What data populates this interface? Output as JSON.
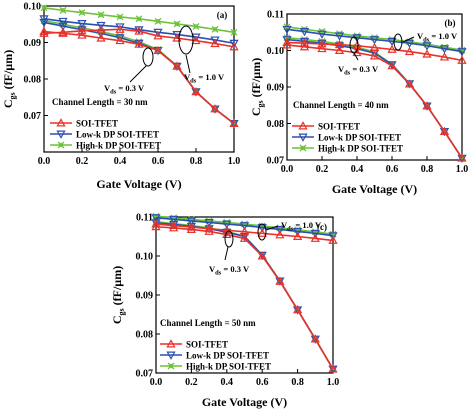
{
  "chart_data": [
    {
      "type": "line",
      "panel_label": "(a)",
      "xlabel": "Gate Voltage (V)",
      "ylabel": "C",
      "ylabel_sub": "gs",
      "ylabel_tail": " (fF/µm)",
      "xlim": [
        0.0,
        1.0
      ],
      "ylim": [
        0.06,
        0.1
      ],
      "xticks": [
        "0.0",
        "0.2",
        "0.4",
        "0.6",
        "0.8",
        "1.0"
      ],
      "yticks": [
        "0.07",
        "0.08",
        "0.09",
        "0.10"
      ],
      "channel_length": "Channel Length = 30 nm",
      "vds_high": {
        "main": "V",
        "sub": "ds",
        "tail": " = 1.0 V"
      },
      "vds_low": {
        "main": "V",
        "sub": "ds",
        "tail": " = 0.3 V"
      },
      "x": [
        0.0,
        0.1,
        0.2,
        0.3,
        0.4,
        0.5,
        0.6,
        0.7,
        0.8,
        0.9,
        1.0
      ],
      "series": [
        {
          "name": "SOI-TFET",
          "color": "#e8322a",
          "marker": "triangle-up",
          "curves": [
            [
              0.093,
              0.0925,
              0.092,
              0.0912,
              0.0905,
              0.0895,
              0.0878,
              0.0835,
              0.0765,
              0.0718,
              0.0678
            ],
            [
              0.0925,
              0.0928,
              0.0932,
              0.0934,
              0.0936,
              0.0931,
              0.0918,
              0.0912,
              0.0905,
              0.0897,
              0.0888
            ]
          ]
        },
        {
          "name": "Low-k DP SOI-TFET",
          "color": "#2b4fb0",
          "marker": "triangle-down",
          "curves": [
            [
              0.0955,
              0.0945,
              0.0935,
              0.0925,
              0.0913,
              0.0898,
              0.0878,
              0.0835,
              0.0765,
              0.0718,
              0.0678
            ],
            [
              0.0965,
              0.0958,
              0.0952,
              0.0947,
              0.0943,
              0.0935,
              0.0928,
              0.0922,
              0.0915,
              0.0907,
              0.0898
            ]
          ]
        },
        {
          "name": "High-k DP SOI-TFET",
          "color": "#6cc23a",
          "marker": "cross",
          "curves": [
            [
              0.096,
              0.095,
              0.094,
              0.093,
              0.0918,
              0.0902,
              0.0881,
              0.0836,
              0.0765,
              0.0718,
              0.0678
            ],
            [
              0.0995,
              0.0988,
              0.0982,
              0.0976,
              0.097,
              0.0965,
              0.0958,
              0.0951,
              0.0944,
              0.0936,
              0.0928
            ]
          ]
        }
      ]
    },
    {
      "type": "line",
      "panel_label": "(b)",
      "xlabel": "Gate Voltage (V)",
      "ylabel": "C",
      "ylabel_sub": "gs",
      "ylabel_tail": " (fF/µm)",
      "xlim": [
        0.0,
        1.0
      ],
      "ylim": [
        0.07,
        0.11
      ],
      "xticks": [
        "0.0",
        "0.2",
        "0.4",
        "0.6",
        "0.8",
        "1.0"
      ],
      "yticks": [
        "0.07",
        "0.08",
        "0.09",
        "0.10",
        "0.11"
      ],
      "channel_length": "Channel Length = 40 nm",
      "vds_high": {
        "main": "V",
        "sub": "ds",
        "tail": " = 1.0 V"
      },
      "vds_low": {
        "main": "V",
        "sub": "ds",
        "tail": " = 0.3 V"
      },
      "x": [
        0.0,
        0.1,
        0.2,
        0.3,
        0.4,
        0.5,
        0.6,
        0.7,
        0.8,
        0.9,
        1.0
      ],
      "series": [
        {
          "name": "SOI-TFET",
          "color": "#e8322a",
          "marker": "triangle-up",
          "curves": [
            [
              0.1015,
              0.101,
              0.1005,
              0.1,
              0.0994,
              0.0985,
              0.0958,
              0.0908,
              0.0848,
              0.0778,
              0.0705
            ],
            [
              0.1022,
              0.102,
              0.1018,
              0.1016,
              0.1013,
              0.1008,
              0.1003,
              0.0997,
              0.099,
              0.0982,
              0.0973
            ]
          ]
        },
        {
          "name": "Low-k DP SOI-TFET",
          "color": "#2b4fb0",
          "marker": "triangle-down",
          "curves": [
            [
              0.103,
              0.1025,
              0.102,
              0.1013,
              0.1005,
              0.0993,
              0.0961,
              0.0909,
              0.0848,
              0.0778,
              0.0705
            ],
            [
              0.1058,
              0.1052,
              0.1045,
              0.104,
              0.1035,
              0.103,
              0.1025,
              0.102,
              0.1013,
              0.1005,
              0.0997
            ]
          ]
        },
        {
          "name": "High-k DP SOI-TFET",
          "color": "#6cc23a",
          "marker": "cross",
          "curves": [
            [
              0.1035,
              0.103,
              0.1025,
              0.1018,
              0.1009,
              0.0996,
              0.0962,
              0.0909,
              0.0848,
              0.0778,
              0.0705
            ],
            [
              0.1065,
              0.1058,
              0.1052,
              0.1046,
              0.104,
              0.1035,
              0.103,
              0.1024,
              0.1017,
              0.1009,
              0.1001
            ]
          ]
        }
      ]
    },
    {
      "type": "line",
      "panel_label": "(c)",
      "xlabel": "Gate Voltage (V)",
      "ylabel": "C",
      "ylabel_sub": "gs",
      "ylabel_tail": " (fF/µm)",
      "xlim": [
        0.0,
        1.0
      ],
      "ylim": [
        0.07,
        0.11
      ],
      "xticks": [
        "0.0",
        "0.2",
        "0.4",
        "0.6",
        "0.8",
        "1.0"
      ],
      "yticks": [
        "0.07",
        "0.08",
        "0.09",
        "0.10",
        "0.11"
      ],
      "channel_length": "Channel Length = 50 nm",
      "vds_high": {
        "main": "V",
        "sub": "ds",
        "tail": " = 1.0 V"
      },
      "vds_low": {
        "main": "V",
        "sub": "ds",
        "tail": " = 0.3 V"
      },
      "x": [
        0.0,
        0.1,
        0.2,
        0.3,
        0.4,
        0.5,
        0.6,
        0.7,
        0.8,
        0.9,
        1.0
      ],
      "series": [
        {
          "name": "SOI-TFET",
          "color": "#e8322a",
          "marker": "triangle-up",
          "curves": [
            [
              0.1075,
              0.1072,
              0.1068,
              0.1063,
              0.1055,
              0.1045,
              0.1,
              0.0935,
              0.0862,
              0.0787,
              0.071
            ],
            [
              0.1082,
              0.1078,
              0.1074,
              0.107,
              0.1066,
              0.1062,
              0.1058,
              0.1054,
              0.105,
              0.1045,
              0.104
            ]
          ]
        },
        {
          "name": "Low-k DP SOI-TFET",
          "color": "#2b4fb0",
          "marker": "triangle-down",
          "curves": [
            [
              0.1085,
              0.1081,
              0.1076,
              0.107,
              0.1061,
              0.105,
              0.1002,
              0.0936,
              0.0862,
              0.0787,
              0.071
            ],
            [
              0.1098,
              0.1094,
              0.109,
              0.1086,
              0.1082,
              0.1078,
              0.1073,
              0.1068,
              0.1063,
              0.1058,
              0.1052
            ]
          ]
        },
        {
          "name": "High-k DP SOI-TFET",
          "color": "#6cc23a",
          "marker": "cross",
          "curves": [
            [
              0.1088,
              0.1083,
              0.1078,
              0.1072,
              0.1063,
              0.1051,
              0.1003,
              0.0936,
              0.0862,
              0.0787,
              0.071
            ],
            [
              0.1102,
              0.1098,
              0.1094,
              0.109,
              0.1086,
              0.1082,
              0.1077,
              0.1072,
              0.1067,
              0.1062,
              0.1056
            ]
          ]
        }
      ]
    }
  ]
}
